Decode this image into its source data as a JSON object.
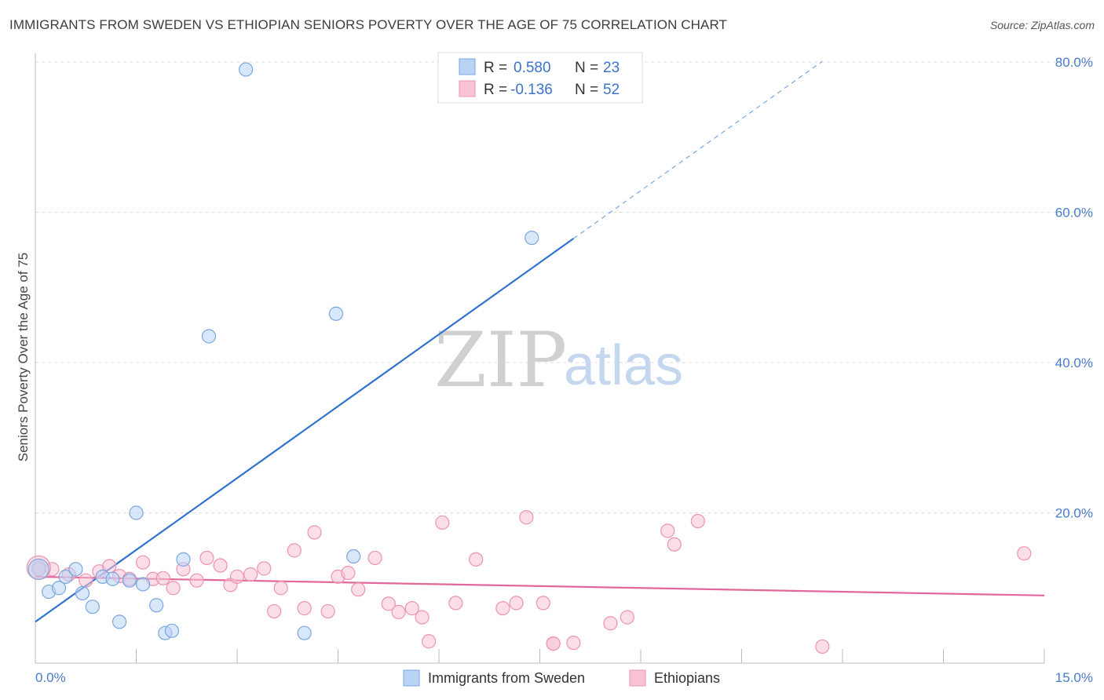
{
  "title": "IMMIGRANTS FROM SWEDEN VS ETHIOPIAN SENIORS POVERTY OVER THE AGE OF 75 CORRELATION CHART",
  "source": "Source: ZipAtlas.com",
  "watermark": {
    "zip": "ZIP",
    "atlas": "atlas"
  },
  "colors": {
    "blue_fill": "#b9d3f5",
    "blue_stroke": "#7aa6e0",
    "blue_line": "#2f72d0",
    "pink_fill": "#f8c3d3",
    "pink_stroke": "#ec93b0",
    "pink_line": "#e2679a",
    "grid": "#dddddd",
    "axis_text": "#4a7cc9"
  },
  "legend": {
    "rows": [
      {
        "r_label": "R =",
        "r_value": "0.580",
        "n_label": "N =",
        "n_value": "23"
      },
      {
        "r_label": "R =",
        "r_value": "-0.136",
        "n_label": "N =",
        "n_value": "52"
      }
    ]
  },
  "chart_data": {
    "type": "scatter",
    "title": "IMMIGRANTS FROM SWEDEN VS ETHIOPIAN SENIORS POVERTY OVER THE AGE OF 75 CORRELATION CHART",
    "xlabel": "",
    "ylabel": "Seniors Poverty Over the Age of 75",
    "xlim": [
      0,
      15
    ],
    "ylim": [
      0,
      80
    ],
    "x_tick_labels": [
      "0.0%",
      "15.0%"
    ],
    "y_ticks": [
      20,
      40,
      60,
      80
    ],
    "y_tick_labels": [
      "20.0%",
      "40.0%",
      "60.0%",
      "80.0%"
    ],
    "grid": "horizontal dashed",
    "legend_position": "top-center",
    "series": [
      {
        "name": "Immigrants from Sweden",
        "color": "#b9d3f5",
        "r": 0.58,
        "n": 23,
        "trend": {
          "x0": 0,
          "y0": 5.5,
          "x1": 8.0,
          "y1": 56.5,
          "dashed_to_x": 11.7
        },
        "points": [
          [
            0.05,
            12.5
          ],
          [
            0.2,
            9.5
          ],
          [
            0.35,
            10.0
          ],
          [
            0.45,
            11.5
          ],
          [
            0.6,
            12.5
          ],
          [
            0.7,
            9.3
          ],
          [
            0.85,
            7.5
          ],
          [
            1.0,
            11.5
          ],
          [
            1.15,
            11.2
          ],
          [
            1.25,
            5.5
          ],
          [
            1.4,
            11.0
          ],
          [
            1.5,
            20.0
          ],
          [
            1.6,
            10.5
          ],
          [
            1.8,
            7.7
          ],
          [
            1.93,
            4.0
          ],
          [
            2.03,
            4.3
          ],
          [
            2.2,
            13.8
          ],
          [
            2.58,
            43.5
          ],
          [
            3.13,
            79.0
          ],
          [
            4.0,
            4.0
          ],
          [
            4.47,
            46.5
          ],
          [
            4.73,
            14.2
          ],
          [
            7.38,
            56.6
          ]
        ]
      },
      {
        "name": "Ethiopians",
        "color": "#f8c3d3",
        "r": -0.136,
        "n": 52,
        "trend": {
          "x0": 0,
          "y0": 11.5,
          "x1": 15,
          "y1": 9.0
        },
        "points": [
          [
            0.05,
            12.8
          ],
          [
            0.25,
            12.5
          ],
          [
            0.5,
            11.8
          ],
          [
            0.75,
            11.0
          ],
          [
            0.95,
            12.2
          ],
          [
            1.1,
            12.9
          ],
          [
            1.25,
            11.6
          ],
          [
            1.4,
            11.2
          ],
          [
            1.6,
            13.4
          ],
          [
            1.75,
            11.2
          ],
          [
            1.9,
            11.3
          ],
          [
            2.05,
            10.0
          ],
          [
            2.2,
            12.5
          ],
          [
            2.4,
            11.0
          ],
          [
            2.55,
            14.0
          ],
          [
            2.75,
            13.0
          ],
          [
            2.9,
            10.4
          ],
          [
            3.0,
            11.5
          ],
          [
            3.2,
            11.8
          ],
          [
            3.4,
            12.6
          ],
          [
            3.55,
            6.9
          ],
          [
            3.65,
            10.0
          ],
          [
            3.85,
            15.0
          ],
          [
            4.0,
            7.3
          ],
          [
            4.15,
            17.4
          ],
          [
            4.35,
            6.9
          ],
          [
            4.5,
            11.5
          ],
          [
            4.65,
            12.0
          ],
          [
            4.8,
            9.8
          ],
          [
            5.05,
            14.0
          ],
          [
            5.25,
            7.9
          ],
          [
            5.4,
            6.8
          ],
          [
            5.6,
            7.3
          ],
          [
            5.75,
            6.1
          ],
          [
            5.85,
            2.9
          ],
          [
            6.05,
            18.7
          ],
          [
            6.25,
            8.0
          ],
          [
            6.55,
            13.8
          ],
          [
            6.95,
            7.3
          ],
          [
            7.15,
            8.0
          ],
          [
            7.3,
            19.4
          ],
          [
            7.55,
            8.0
          ],
          [
            7.7,
            2.6
          ],
          [
            7.7,
            2.6
          ],
          [
            8.0,
            2.7
          ],
          [
            8.55,
            5.3
          ],
          [
            8.8,
            6.1
          ],
          [
            9.4,
            17.6
          ],
          [
            9.5,
            15.8
          ],
          [
            9.85,
            18.9
          ],
          [
            11.7,
            2.2
          ],
          [
            14.7,
            14.6
          ]
        ]
      }
    ]
  }
}
